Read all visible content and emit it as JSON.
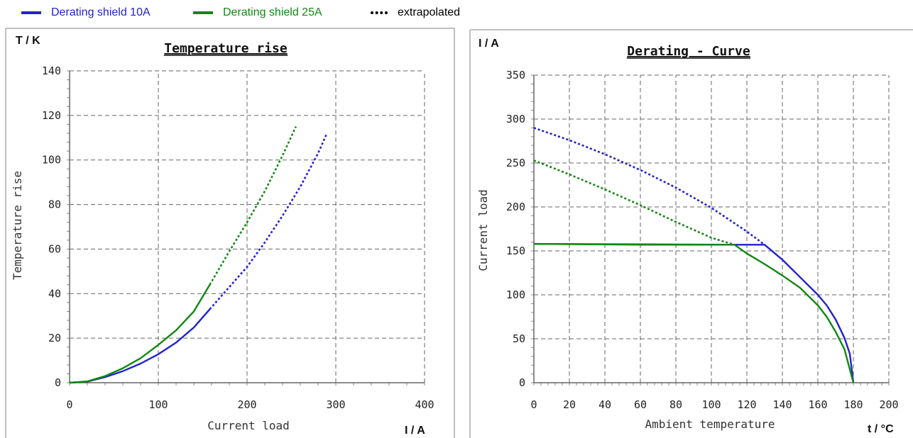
{
  "legend": {
    "items": [
      {
        "label": "Derating shield 10A",
        "color": "#2222cc",
        "style": "solid"
      },
      {
        "label": "Derating shield 25A",
        "color": "#118811",
        "style": "solid"
      },
      {
        "label": "extrapolated",
        "color": "#000000",
        "style": "dotted"
      }
    ]
  },
  "chart_data": [
    {
      "type": "line",
      "title": "Temperature rise",
      "xlabel": "Current load",
      "ylabel": "Temperature rise",
      "x_unit": "I / A",
      "y_unit": "T / K",
      "xlim": [
        0,
        400
      ],
      "ylim": [
        0,
        140
      ],
      "x_ticks": [
        0,
        100,
        200,
        300,
        400
      ],
      "y_ticks": [
        0,
        20,
        40,
        60,
        80,
        100,
        120,
        140
      ],
      "grid": true,
      "series": [
        {
          "name": "Derating shield 10A",
          "color": "#2222cc",
          "style": "solid",
          "x": [
            0,
            20,
            40,
            60,
            80,
            100,
            120,
            140,
            158
          ],
          "y": [
            0,
            0.5,
            2.5,
            5.2,
            8.6,
            12.8,
            18,
            24.8,
            33
          ]
        },
        {
          "name": "Derating shield 10A",
          "color": "#2222cc",
          "style": "dotted",
          "x": [
            158,
            180,
            200,
            220,
            240,
            260,
            280,
            290
          ],
          "y": [
            33,
            43,
            52,
            63,
            75,
            88,
            103,
            112
          ]
        },
        {
          "name": "Derating shield 25A",
          "color": "#118811",
          "style": "solid",
          "x": [
            0,
            20,
            40,
            60,
            80,
            100,
            120,
            140,
            158
          ],
          "y": [
            0,
            0.6,
            3,
            6.5,
            11,
            17,
            23.5,
            32,
            44
          ]
        },
        {
          "name": "Derating shield 25A",
          "color": "#118811",
          "style": "dotted",
          "x": [
            158,
            180,
            200,
            220,
            240,
            255
          ],
          "y": [
            44,
            59,
            72,
            86,
            102,
            115
          ]
        }
      ]
    },
    {
      "type": "line",
      "title": "Derating - Curve",
      "xlabel": "Ambient temperature",
      "ylabel": "Current load",
      "x_unit": "t / °C",
      "y_unit": "I / A",
      "xlim": [
        0,
        200
      ],
      "ylim": [
        0,
        350
      ],
      "x_ticks": [
        0,
        20,
        40,
        60,
        80,
        100,
        120,
        140,
        160,
        180,
        200
      ],
      "y_ticks": [
        0,
        50,
        100,
        150,
        200,
        250,
        300,
        350
      ],
      "grid": true,
      "series": [
        {
          "name": "Derating shield 10A",
          "color": "#2222cc",
          "style": "dotted",
          "x": [
            0,
            20,
            40,
            60,
            80,
            100,
            120,
            130
          ],
          "y": [
            290,
            276,
            260,
            242,
            222,
            199,
            172,
            157
          ]
        },
        {
          "name": "Derating shield 10A",
          "color": "#2222cc",
          "style": "solid",
          "x": [
            0,
            110,
            130,
            140,
            150,
            160,
            165,
            170,
            175,
            178,
            180
          ],
          "y": [
            158,
            157,
            157,
            140,
            120,
            100,
            88,
            72,
            51,
            33,
            0
          ]
        },
        {
          "name": "Derating shield 25A",
          "color": "#118811",
          "style": "dotted",
          "x": [
            0,
            20,
            40,
            60,
            80,
            100,
            113
          ],
          "y": [
            253,
            237,
            220,
            202,
            183,
            165,
            157
          ]
        },
        {
          "name": "Derating shield 25A",
          "color": "#118811",
          "style": "solid",
          "x": [
            0,
            60,
            113,
            120,
            130,
            140,
            150,
            160,
            165,
            170,
            175,
            180
          ],
          "y": [
            158,
            157,
            157,
            147,
            135,
            122,
            108,
            88,
            75,
            58,
            38,
            0
          ]
        }
      ]
    }
  ]
}
